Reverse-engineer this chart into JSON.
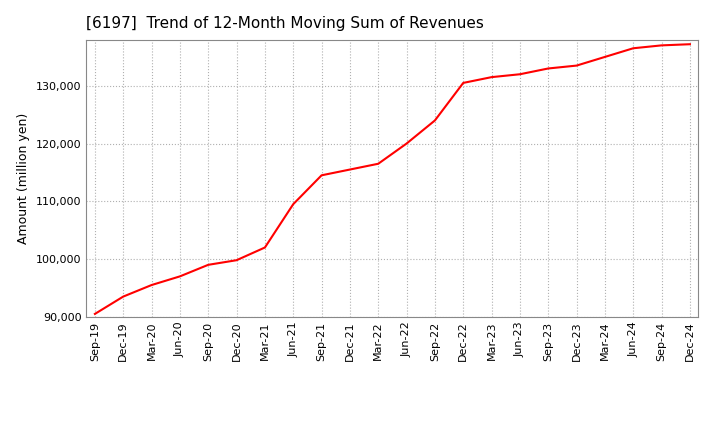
{
  "title": "[6197]  Trend of 12-Month Moving Sum of Revenues",
  "ylabel": "Amount (million yen)",
  "line_color": "#ff0000",
  "line_width": 1.5,
  "background_color": "#ffffff",
  "grid_color": "#b0b0b0",
  "ylim": [
    90000,
    138000
  ],
  "yticks": [
    90000,
    100000,
    110000,
    120000,
    130000
  ],
  "xtick_labels": [
    "Sep-19",
    "Dec-19",
    "Mar-20",
    "Jun-20",
    "Sep-20",
    "Dec-20",
    "Mar-21",
    "Jun-21",
    "Sep-21",
    "Dec-21",
    "Mar-22",
    "Jun-22",
    "Sep-22",
    "Dec-22",
    "Mar-23",
    "Jun-23",
    "Sep-23",
    "Dec-23",
    "Mar-24",
    "Jun-24",
    "Sep-24",
    "Dec-24"
  ],
  "data": [
    90500,
    93500,
    95500,
    97000,
    99000,
    99800,
    102000,
    109500,
    114500,
    115500,
    116500,
    120000,
    124000,
    130500,
    131500,
    132000,
    133000,
    133500,
    135000,
    136500,
    137000,
    137200
  ],
  "title_fontsize": 11,
  "ylabel_fontsize": 9,
  "tick_fontsize": 8
}
